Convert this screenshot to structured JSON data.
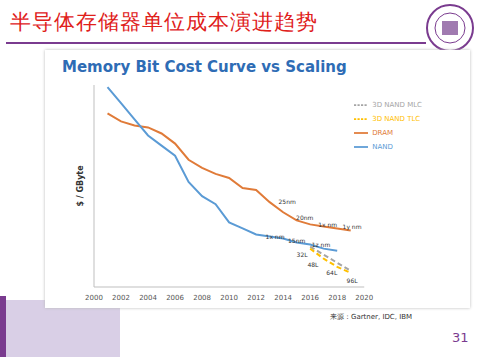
{
  "slide": {
    "title": "半导体存储器单位成本演进趋势",
    "source": "来源：Gartner, IDC, IBM",
    "page": "31"
  },
  "chart_data": {
    "type": "line",
    "title": "Memory Bit Cost Curve vs Scaling",
    "y_label": "$ / GByte",
    "x": [
      2000,
      2001,
      2002,
      2003,
      2004,
      2005,
      2006,
      2007,
      2008,
      2009,
      2010,
      2011,
      2012,
      2013,
      2014,
      2015,
      2016,
      2017,
      2018,
      2019,
      2020
    ],
    "series": [
      {
        "name": "DRAM",
        "color": "#e07b39",
        "line_style": "solid",
        "values": [
          null,
          86,
          82,
          80,
          79,
          76,
          71,
          63,
          59,
          56,
          54,
          49,
          48,
          42,
          37,
          33,
          31,
          30,
          29,
          28,
          null
        ]
      },
      {
        "name": "NAND",
        "color": "#5b9bd5",
        "line_style": "solid",
        "values": [
          null,
          99,
          91,
          83,
          75,
          70,
          65,
          52,
          45,
          41,
          32,
          29,
          26,
          25,
          24,
          22,
          21,
          19,
          18,
          null,
          null
        ]
      },
      {
        "name": "3D NAND MLC",
        "color": "#a5a5a5",
        "line_style": "dashed",
        "values": [
          null,
          null,
          null,
          null,
          null,
          null,
          null,
          null,
          null,
          null,
          null,
          null,
          null,
          null,
          null,
          null,
          20,
          16,
          12,
          8,
          null
        ]
      },
      {
        "name": "3D NAND TLC",
        "color": "#ffc000",
        "line_style": "dashed",
        "values": [
          null,
          null,
          null,
          null,
          null,
          null,
          null,
          null,
          null,
          null,
          null,
          null,
          null,
          null,
          null,
          null,
          19,
          14,
          10,
          7,
          null
        ]
      }
    ],
    "xlim": [
      2000,
      2020
    ],
    "xticks": [
      2000,
      2002,
      2004,
      2006,
      2008,
      2010,
      2012,
      2014,
      2016,
      2018,
      2020
    ],
    "ylim": [
      0,
      100
    ],
    "tick_labels": "x",
    "legend": "upper right",
    "grid": false,
    "annotations": [
      {
        "text": "25nm",
        "x": 2014.3,
        "y": 42
      },
      {
        "text": "20nm",
        "x": 2015.6,
        "y": 34
      },
      {
        "text": "1x nm",
        "x": 2017.3,
        "y": 31
      },
      {
        "text": "1y nm",
        "x": 2019.1,
        "y": 30
      },
      {
        "text": "1x nm",
        "x": 2013.4,
        "y": 25
      },
      {
        "text": "15nm",
        "x": 2015,
        "y": 23
      },
      {
        "text": "1z nm",
        "x": 2016.8,
        "y": 21
      },
      {
        "text": "32L",
        "x": 2015.4,
        "y": 16
      },
      {
        "text": "48L",
        "x": 2016.2,
        "y": 11
      },
      {
        "text": "64L",
        "x": 2017.6,
        "y": 7
      },
      {
        "text": "96L",
        "x": 2019.1,
        "y": 3
      }
    ]
  }
}
